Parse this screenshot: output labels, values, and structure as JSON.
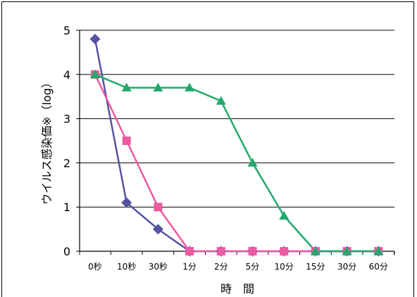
{
  "chart_data": {
    "type": "line",
    "title": "",
    "xlabel": "時　間",
    "ylabel": "ウイルス感染価※（log）",
    "categories": [
      "0秒",
      "10秒",
      "30秒",
      "1分",
      "2分",
      "5分",
      "10分",
      "15分",
      "30分",
      "60分"
    ],
    "ylim": [
      0,
      5
    ],
    "yticks": [
      "0",
      "1",
      "2",
      "3",
      "4",
      "5"
    ],
    "grid": true,
    "legend": "none",
    "series": [
      {
        "marker": "diamond",
        "color": "#5553a3",
        "values": [
          4.8,
          1.1,
          0.5,
          0,
          0,
          0,
          0,
          0,
          0,
          0
        ]
      },
      {
        "marker": "square",
        "color": "#ea5ba1",
        "values": [
          4.0,
          2.5,
          1.0,
          0,
          0,
          0,
          0,
          0,
          0,
          0
        ]
      },
      {
        "marker": "triangle",
        "color": "#23a86c",
        "values": [
          4.0,
          3.7,
          3.7,
          3.7,
          3.4,
          2.0,
          0.8,
          0,
          0,
          0
        ]
      }
    ]
  }
}
